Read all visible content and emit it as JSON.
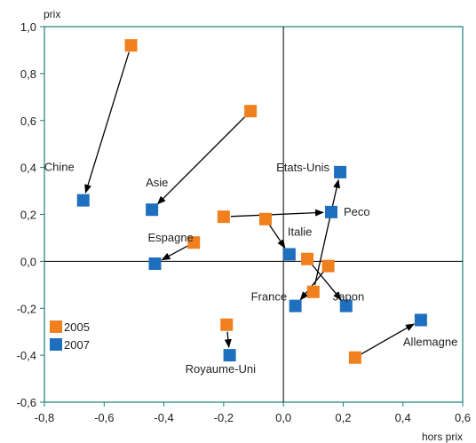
{
  "chart_data": {
    "type": "scatter",
    "title": "",
    "xlabel": "hors prix",
    "ylabel": "prix",
    "xlim": [
      -0.8,
      0.6
    ],
    "ylim": [
      -0.6,
      1.0
    ],
    "xticks": [
      -0.8,
      -0.6,
      -0.4,
      -0.2,
      0.0,
      0.2,
      0.4,
      0.6
    ],
    "yticks": [
      -0.6,
      -0.4,
      -0.2,
      0.0,
      0.2,
      0.4,
      0.6,
      0.8,
      1.0
    ],
    "xtick_labels": [
      "-0,8",
      "-0,6",
      "-0,4",
      "-0,2",
      "0,0",
      "0,2",
      "0,4",
      "0,6"
    ],
    "ytick_labels": [
      "-0,6",
      "-0,4",
      "-0,2",
      "0,0",
      "0,2",
      "0,4",
      "0,6",
      "0,8",
      "1,0"
    ],
    "grid": false,
    "legend_position": "bottom-left",
    "series": [
      {
        "name": "2005",
        "color": "#F07F1E",
        "marker": "square"
      },
      {
        "name": "2007",
        "color": "#1F6FBF",
        "marker": "square"
      }
    ],
    "arrows": "from 2005 to 2007",
    "points": [
      {
        "label": "Chine",
        "p2005": [
          -0.51,
          0.92
        ],
        "p2007": [
          -0.67,
          0.26
        ]
      },
      {
        "label": "Asie",
        "p2005": [
          -0.11,
          0.64
        ],
        "p2007": [
          -0.44,
          0.22
        ]
      },
      {
        "label": "Etats-Unis",
        "p2005": [
          0.1,
          -0.13
        ],
        "p2007": [
          0.19,
          0.38
        ]
      },
      {
        "label": "Peco",
        "p2005": [
          -0.2,
          0.19
        ],
        "p2007": [
          0.16,
          0.21
        ]
      },
      {
        "label": "Espagne",
        "p2005": [
          -0.3,
          0.08
        ],
        "p2007": [
          -0.43,
          -0.01
        ]
      },
      {
        "label": "Italie",
        "p2005": [
          -0.06,
          0.18
        ],
        "p2007": [
          0.02,
          0.03
        ]
      },
      {
        "label": "France",
        "p2005": [
          0.15,
          -0.02
        ],
        "p2007": [
          0.04,
          -0.19
        ]
      },
      {
        "label": "Japon",
        "p2005": [
          0.08,
          0.01
        ],
        "p2007": [
          0.21,
          -0.19
        ]
      },
      {
        "label": "Allemagne",
        "p2005": [
          0.24,
          -0.41
        ],
        "p2007": [
          0.46,
          -0.25
        ]
      },
      {
        "label": "Royaume-Uni",
        "p2005": [
          -0.19,
          -0.27
        ],
        "p2007": [
          -0.18,
          -0.4
        ]
      }
    ]
  }
}
